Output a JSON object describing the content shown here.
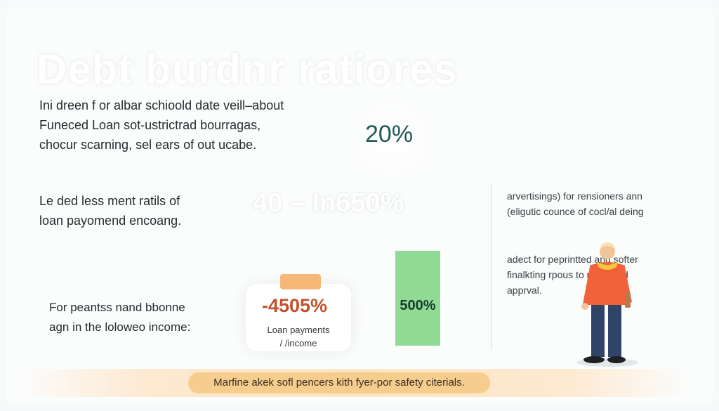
{
  "title": "Debt burdnr ratiores",
  "intro": {
    "lines": [
      "Ini dreen f or albar schioold date veill–about",
      "Funeced Loan sot-ustrictrad bourragas,",
      "chocur scarning, sel ears of out ucabe."
    ]
  },
  "stat_top": {
    "value": "20%"
  },
  "section_two": {
    "lines": [
      "Le ded less ment ratils of",
      "loan payomend encoang."
    ]
  },
  "stat_range": {
    "value": "40 – In650%"
  },
  "section_three": {
    "lines": [
      "For peantss nand bbonne",
      "agn in the loloweo income:"
    ]
  },
  "card": {
    "value": "-4505%",
    "label_lines": [
      "Loan payments",
      "/ /income"
    ]
  },
  "bar": {
    "label": "500%",
    "color": "#8fdb96"
  },
  "right_column": {
    "block_one": [
      "arvertisings) for rensioners ann",
      "(eligutic counce of cocl/al deing"
    ],
    "block_two": [
      "adect for peprintted and softer",
      "finalkting rpous to retiraated",
      "apprval."
    ]
  },
  "banner": {
    "text": "Marfine akek sofl pencers kith fyer-por safety citerials."
  },
  "illustration": {
    "icon": "elderly-person-illustration"
  },
  "colors": {
    "accent_teal": "#1f5a55",
    "accent_red": "#c0532b",
    "accent_orange": "#f6b877",
    "banner": "#f7cd8e"
  }
}
